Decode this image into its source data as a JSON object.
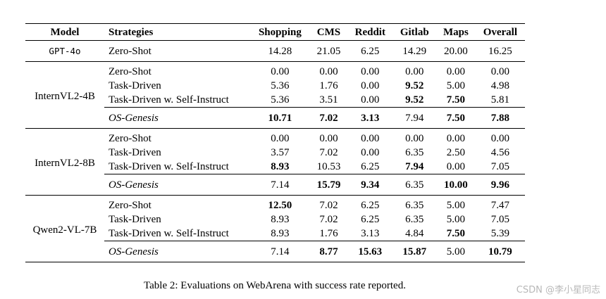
{
  "table": {
    "headers": [
      "Model",
      "Strategies",
      "Shopping",
      "CMS",
      "Reddit",
      "Gitlab",
      "Maps",
      "Overall"
    ],
    "gpt": {
      "model": "GPT-4o",
      "strategy": "Zero-Shot",
      "values": [
        "14.28",
        "21.05",
        "6.25",
        "14.29",
        "20.00",
        "16.25"
      ]
    },
    "groups": [
      {
        "model": "InternVL2-4B",
        "rows": [
          {
            "strategy": "Zero-Shot",
            "values": [
              "0.00",
              "0.00",
              "0.00",
              "0.00",
              "0.00",
              "0.00"
            ],
            "bold": []
          },
          {
            "strategy": "Task-Driven",
            "values": [
              "5.36",
              "1.76",
              "0.00",
              "9.52",
              "5.00",
              "4.98"
            ],
            "bold": [
              3
            ]
          },
          {
            "strategy": "Task-Driven w. Self-Instruct",
            "values": [
              "5.36",
              "3.51",
              "0.00",
              "9.52",
              "7.50",
              "5.81"
            ],
            "bold": [
              3,
              4
            ]
          },
          {
            "strategy": "OS-Genesis",
            "values": [
              "10.71",
              "7.02",
              "3.13",
              "7.94",
              "7.50",
              "7.88"
            ],
            "bold": [
              0,
              1,
              2,
              4,
              5
            ]
          }
        ]
      },
      {
        "model": "InternVL2-8B",
        "rows": [
          {
            "strategy": "Zero-Shot",
            "values": [
              "0.00",
              "0.00",
              "0.00",
              "0.00",
              "0.00",
              "0.00"
            ],
            "bold": []
          },
          {
            "strategy": "Task-Driven",
            "values": [
              "3.57",
              "7.02",
              "0.00",
              "6.35",
              "2.50",
              "4.56"
            ],
            "bold": []
          },
          {
            "strategy": "Task-Driven w. Self-Instruct",
            "values": [
              "8.93",
              "10.53",
              "6.25",
              "7.94",
              "0.00",
              "7.05"
            ],
            "bold": [
              0,
              3
            ]
          },
          {
            "strategy": "OS-Genesis",
            "values": [
              "7.14",
              "15.79",
              "9.34",
              "6.35",
              "10.00",
              "9.96"
            ],
            "bold": [
              1,
              2,
              4,
              5
            ]
          }
        ]
      },
      {
        "model": "Qwen2-VL-7B",
        "rows": [
          {
            "strategy": "Zero-Shot",
            "values": [
              "12.50",
              "7.02",
              "6.25",
              "6.35",
              "5.00",
              "7.47"
            ],
            "bold": [
              0
            ]
          },
          {
            "strategy": "Task-Driven",
            "values": [
              "8.93",
              "7.02",
              "6.25",
              "6.35",
              "5.00",
              "7.05"
            ],
            "bold": []
          },
          {
            "strategy": "Task-Driven w. Self-Instruct",
            "values": [
              "8.93",
              "1.76",
              "3.13",
              "4.84",
              "7.50",
              "5.39"
            ],
            "bold": [
              4
            ]
          },
          {
            "strategy": "OS-Genesis",
            "values": [
              "7.14",
              "8.77",
              "15.63",
              "15.87",
              "5.00",
              "10.79"
            ],
            "bold": [
              1,
              2,
              3,
              5
            ]
          }
        ]
      }
    ]
  },
  "caption": "Table 2: Evaluations on WebArena with success rate reported.",
  "watermark": "CSDN @李小星同志"
}
